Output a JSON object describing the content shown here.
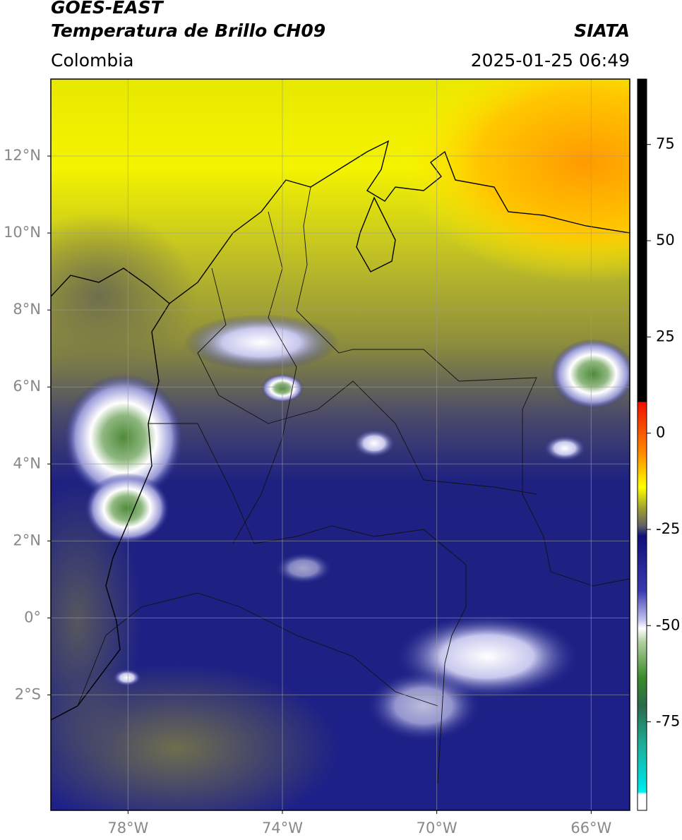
{
  "header": {
    "title": "GOES-EAST",
    "subtitle": "Temperatura de Brillo CH09",
    "source": "SIATA",
    "region": "Colombia",
    "datetime": "2025-01-25 06:49"
  },
  "map": {
    "lonlim": [
      -80,
      -65
    ],
    "latlim": [
      -5,
      14
    ],
    "lat_ticks": [
      {
        "value": 12,
        "label": "12°N"
      },
      {
        "value": 10,
        "label": "10°N"
      },
      {
        "value": 8,
        "label": "8°N"
      },
      {
        "value": 6,
        "label": "6°N"
      },
      {
        "value": 4,
        "label": "4°N"
      },
      {
        "value": 2,
        "label": "2°N"
      },
      {
        "value": 0,
        "label": "0°"
      },
      {
        "value": -2,
        "label": "2°S"
      }
    ],
    "lon_ticks": [
      {
        "value": -78,
        "label": "78°W"
      },
      {
        "value": -74,
        "label": "74°W"
      },
      {
        "value": -70,
        "label": "70°W"
      },
      {
        "value": -66,
        "label": "66°W"
      }
    ],
    "grid": true
  },
  "colorbar": {
    "lim": [
      -98,
      92
    ],
    "ticks": [
      75,
      50,
      25,
      0,
      -25,
      -50,
      -75
    ]
  }
}
